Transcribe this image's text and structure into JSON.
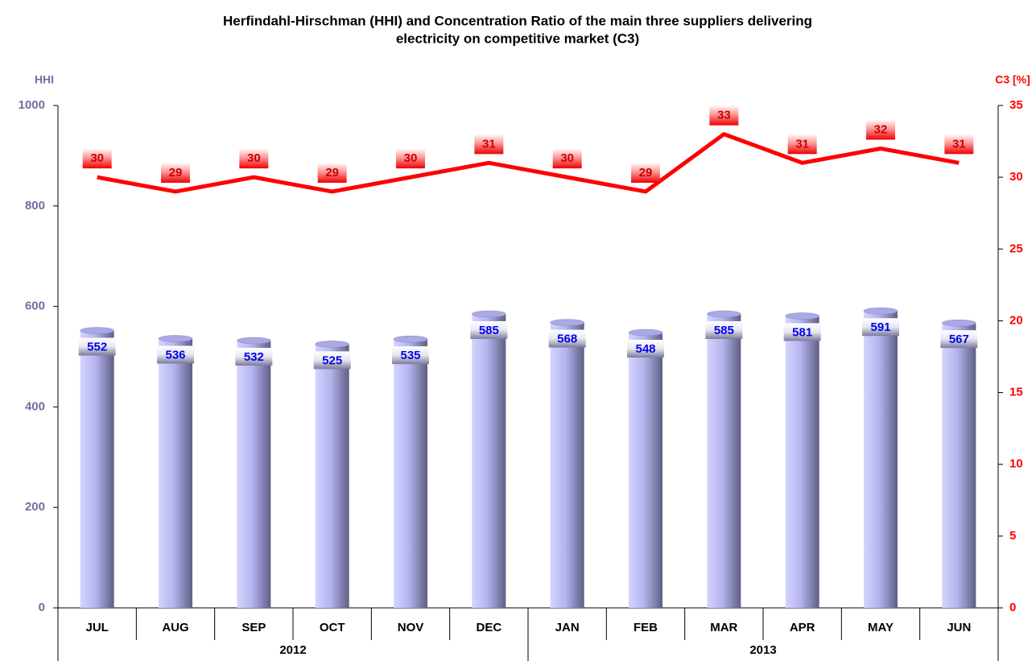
{
  "chart_data": {
    "type": "bar",
    "title": "Herfindahl-Hirschman (HHI) and Concentration Ratio of the main three suppliers delivering",
    "subtitle": "electricity on competitive market (C3)",
    "y_label": "HHI",
    "y2_label": "C3 [%]",
    "category_groups": [
      {
        "label": "2012",
        "categories": [
          "JUL",
          "AUG",
          "SEP",
          "OCT",
          "NOV",
          "DEC"
        ]
      },
      {
        "label": "2013",
        "categories": [
          "JAN",
          "FEB",
          "MAR",
          "APR",
          "MAY",
          "JUN"
        ]
      }
    ],
    "series": [
      {
        "name": "HHI",
        "type": "bar",
        "color": "#a9a9e6",
        "values": [
          552,
          536,
          532,
          525,
          535,
          585,
          568,
          548,
          585,
          581,
          591,
          567
        ]
      },
      {
        "name": "C3",
        "type": "line",
        "axis": "y2",
        "color": "#ff0000",
        "values": [
          30,
          29,
          30,
          29,
          30,
          31,
          30,
          29,
          33,
          31,
          32,
          31
        ]
      }
    ],
    "ylim": [
      0,
      1000
    ],
    "yticks": [
      0,
      200,
      400,
      600,
      800,
      1000
    ],
    "y2lim": [
      0,
      35
    ],
    "y2ticks": [
      0,
      5,
      10,
      15,
      20,
      25,
      30,
      35
    ],
    "y_color": "#6f6fa0",
    "y2_color": "#ff0000"
  }
}
